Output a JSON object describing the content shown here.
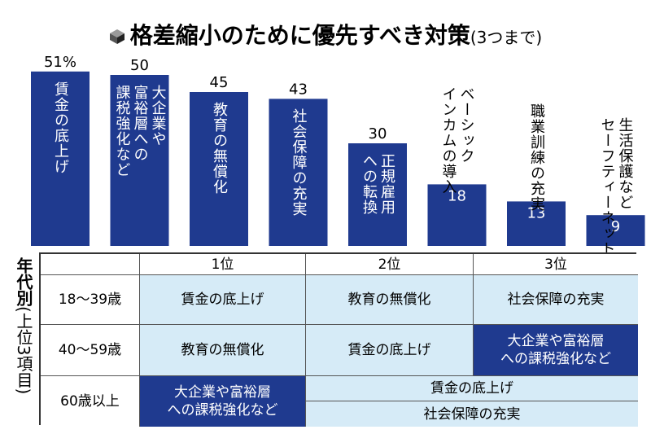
{
  "title": {
    "main": "格差縮小のために優先すべき対策",
    "sub": "(3つまで)"
  },
  "colors": {
    "bar": "#1f3a8f",
    "light_cell": "#d6ebf7",
    "dark_cell": "#1f3a8f"
  },
  "chart_data": {
    "type": "bar",
    "title": "格差縮小のために優先すべき対策(3つまで)",
    "unit": "%",
    "categories": [
      "賃金の底上げ",
      "大企業や富裕層への課税強化など",
      "教育の無償化",
      "社会保障の充実",
      "正規雇用への転換",
      "ベーシックインカムの導入",
      "職業訓練の充実",
      "生活保護などセーフティーネット"
    ],
    "category_display": [
      "賃金の底上げ",
      "大企業や\n富裕層への\n課税強化など",
      "教育の無償化",
      "社会保障の充実",
      "正規雇用\nへの転換",
      "ベーシック\nインカムの導入",
      "職業訓練の充実",
      "生活保護など\nセーフティーネット"
    ],
    "value_labels": [
      "51%",
      "50",
      "45",
      "43",
      "30",
      "18",
      "13",
      "9"
    ],
    "values": [
      51,
      50,
      45,
      43,
      30,
      18,
      13,
      9
    ],
    "ylim": [
      0,
      55
    ]
  },
  "table": {
    "side_label_main": "年代別",
    "side_label_sub": "(上位3項目)",
    "rank_headers": [
      "1位",
      "2位",
      "3位"
    ],
    "rows": [
      {
        "age": "18〜39歳",
        "r1": "賃金の底上げ",
        "r2": "教育の無償化",
        "r3": "社会保障の充実"
      },
      {
        "age": "40〜59歳",
        "r1": "教育の無償化",
        "r2": "賃金の底上げ",
        "r3": "大企業や富裕層\nへの課税強化など"
      },
      {
        "age": "60歳以上",
        "r1": "大企業や富裕層\nへの課税強化など",
        "r2": "賃金の底上げ",
        "r3": "社会保障の充実"
      }
    ]
  }
}
